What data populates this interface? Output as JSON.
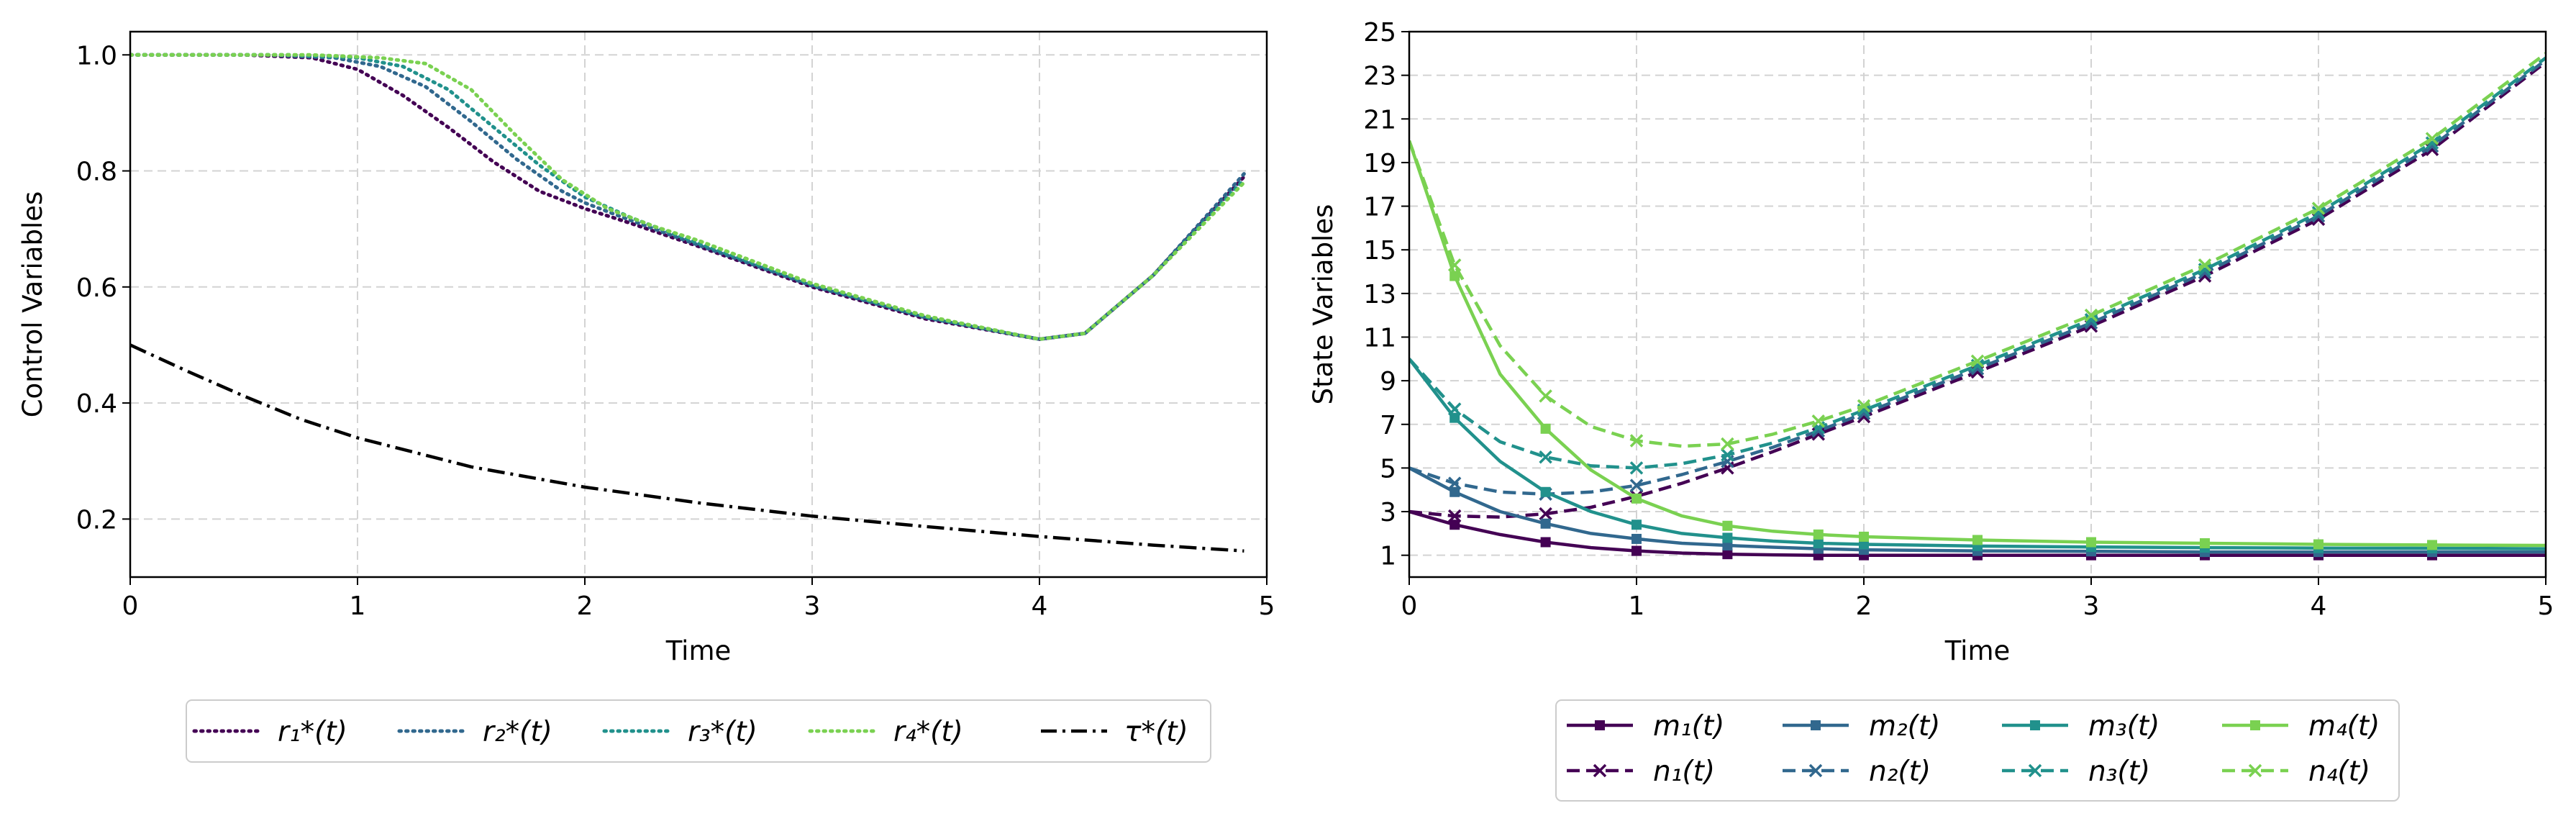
{
  "chart_data": [
    {
      "type": "line",
      "title": "",
      "xlabel": "Time",
      "ylabel": "Control Variables",
      "xlim": [
        0,
        5
      ],
      "ylim": [
        0.1,
        1.04
      ],
      "xticks": [
        0,
        1,
        2,
        3,
        4,
        5
      ],
      "yticks": [
        0.2,
        0.4,
        0.6,
        0.8,
        1.0
      ],
      "ytick_labels": [
        "0.2",
        "0.4",
        "0.6",
        "0.8",
        "1.0"
      ],
      "grid": true,
      "legend_position": "bottom",
      "series": [
        {
          "name": "r1",
          "legend": "r₁*(t)",
          "color": "#440154",
          "style": "dotted",
          "x": [
            0,
            0.5,
            0.8,
            1.0,
            1.2,
            1.4,
            1.6,
            1.8,
            2.0,
            2.2,
            2.5,
            3.0,
            3.5,
            4.0,
            4.2,
            4.5,
            4.9
          ],
          "y": [
            1.0,
            1.0,
            0.995,
            0.975,
            0.93,
            0.875,
            0.815,
            0.765,
            0.735,
            0.71,
            0.67,
            0.6,
            0.545,
            0.51,
            0.52,
            0.62,
            0.79
          ]
        },
        {
          "name": "r2",
          "legend": "r₂*(t)",
          "color": "#31688e",
          "style": "dotted",
          "x": [
            0,
            0.6,
            0.9,
            1.1,
            1.3,
            1.5,
            1.7,
            1.9,
            2.0,
            2.2,
            2.5,
            3.0,
            3.5,
            4.0,
            4.2,
            4.5,
            4.9
          ],
          "y": [
            1.0,
            1.0,
            0.995,
            0.98,
            0.945,
            0.885,
            0.82,
            0.765,
            0.745,
            0.715,
            0.672,
            0.602,
            0.547,
            0.51,
            0.52,
            0.62,
            0.795
          ]
        },
        {
          "name": "r3",
          "legend": "r₃*(t)",
          "color": "#21918c",
          "style": "dotted",
          "x": [
            0,
            0.7,
            1.0,
            1.2,
            1.4,
            1.6,
            1.8,
            2.0,
            2.2,
            2.5,
            3.0,
            3.5,
            4.0,
            4.2,
            4.5,
            4.9
          ],
          "y": [
            1.0,
            1.0,
            0.995,
            0.98,
            0.94,
            0.875,
            0.81,
            0.755,
            0.72,
            0.675,
            0.604,
            0.548,
            0.51,
            0.52,
            0.62,
            0.785
          ]
        },
        {
          "name": "r4",
          "legend": "r₄*(t)",
          "color": "#7ad151",
          "style": "dotted",
          "x": [
            0,
            0.8,
            1.1,
            1.3,
            1.5,
            1.7,
            1.9,
            2.1,
            2.3,
            2.5,
            3.0,
            3.5,
            4.0,
            4.2,
            4.5,
            4.9
          ],
          "y": [
            1.0,
            1.0,
            0.995,
            0.985,
            0.94,
            0.86,
            0.785,
            0.735,
            0.705,
            0.68,
            0.606,
            0.55,
            0.51,
            0.52,
            0.62,
            0.78
          ]
        },
        {
          "name": "tau",
          "legend": "τ*(t)",
          "color": "#000000",
          "style": "dashdot",
          "x": [
            0,
            0.25,
            0.5,
            0.75,
            1.0,
            1.5,
            2.0,
            2.5,
            3.0,
            3.5,
            4.0,
            4.5,
            4.9
          ],
          "y": [
            0.5,
            0.455,
            0.412,
            0.372,
            0.34,
            0.29,
            0.255,
            0.228,
            0.205,
            0.187,
            0.17,
            0.155,
            0.145
          ]
        }
      ]
    },
    {
      "type": "line",
      "title": "",
      "xlabel": "Time",
      "ylabel": "State Variables",
      "xlim": [
        0,
        5
      ],
      "ylim": [
        0,
        25
      ],
      "xticks": [
        0,
        1,
        2,
        3,
        4,
        5
      ],
      "yticks": [
        1,
        3,
        5,
        7,
        9,
        11,
        13,
        15,
        17,
        19,
        21,
        23,
        25
      ],
      "grid": true,
      "legend_position": "bottom",
      "series": [
        {
          "name": "m1",
          "legend": "m₁(t)",
          "color": "#440154",
          "style": "solid",
          "marker": "square",
          "x": [
            0,
            0.2,
            0.4,
            0.6,
            0.8,
            1.0,
            1.2,
            1.4,
            1.6,
            1.8,
            2.0,
            2.5,
            3.0,
            3.5,
            4.0,
            4.5,
            5.0
          ],
          "y": [
            3.0,
            2.4,
            1.95,
            1.6,
            1.35,
            1.2,
            1.1,
            1.05,
            1.02,
            1.0,
            1.0,
            1.0,
            1.0,
            1.0,
            1.0,
            1.0,
            1.0
          ]
        },
        {
          "name": "n1",
          "legend": "n₁(t)",
          "color": "#440154",
          "style": "dashed",
          "marker": "x",
          "x": [
            0,
            0.2,
            0.4,
            0.6,
            0.8,
            1.0,
            1.2,
            1.4,
            1.6,
            1.8,
            2.0,
            2.5,
            3.0,
            3.5,
            4.0,
            4.5,
            5.0
          ],
          "y": [
            3.0,
            2.8,
            2.75,
            2.9,
            3.2,
            3.7,
            4.3,
            5.0,
            5.75,
            6.55,
            7.35,
            9.4,
            11.5,
            13.8,
            16.4,
            19.6,
            23.6
          ]
        },
        {
          "name": "m2",
          "legend": "m₂(t)",
          "color": "#31688e",
          "style": "solid",
          "marker": "square",
          "x": [
            0,
            0.2,
            0.4,
            0.6,
            0.8,
            1.0,
            1.2,
            1.4,
            1.6,
            1.8,
            2.0,
            2.5,
            3.0,
            3.5,
            4.0,
            4.5,
            5.0
          ],
          "y": [
            5.0,
            3.9,
            3.0,
            2.45,
            2.0,
            1.75,
            1.55,
            1.45,
            1.37,
            1.3,
            1.25,
            1.2,
            1.18,
            1.15,
            1.15,
            1.15,
            1.15
          ]
        },
        {
          "name": "n2",
          "legend": "n₂(t)",
          "color": "#31688e",
          "style": "dashed",
          "marker": "x",
          "x": [
            0,
            0.2,
            0.4,
            0.6,
            0.8,
            1.0,
            1.2,
            1.4,
            1.6,
            1.8,
            2.0,
            2.5,
            3.0,
            3.5,
            4.0,
            4.5,
            5.0
          ],
          "y": [
            5.0,
            4.3,
            3.9,
            3.8,
            3.9,
            4.2,
            4.7,
            5.3,
            5.95,
            6.7,
            7.5,
            9.55,
            11.65,
            13.95,
            16.55,
            19.75,
            23.7
          ]
        },
        {
          "name": "m3",
          "legend": "m₃(t)",
          "color": "#21918c",
          "style": "solid",
          "marker": "square",
          "x": [
            0,
            0.2,
            0.4,
            0.6,
            0.8,
            1.0,
            1.2,
            1.4,
            1.6,
            1.8,
            2.0,
            2.5,
            3.0,
            3.5,
            4.0,
            4.5,
            5.0
          ],
          "y": [
            10.0,
            7.3,
            5.3,
            3.9,
            3.0,
            2.4,
            2.0,
            1.8,
            1.65,
            1.55,
            1.5,
            1.42,
            1.38,
            1.35,
            1.33,
            1.32,
            1.3
          ]
        },
        {
          "name": "n3",
          "legend": "n₃(t)",
          "color": "#21918c",
          "style": "dashed",
          "marker": "x",
          "x": [
            0,
            0.2,
            0.4,
            0.6,
            0.8,
            1.0,
            1.2,
            1.4,
            1.6,
            1.8,
            2.0,
            2.5,
            3.0,
            3.5,
            4.0,
            4.5,
            5.0
          ],
          "y": [
            10.0,
            7.7,
            6.2,
            5.5,
            5.1,
            5.0,
            5.2,
            5.6,
            6.15,
            6.85,
            7.65,
            9.7,
            11.8,
            14.1,
            16.7,
            19.9,
            23.8
          ]
        },
        {
          "name": "m4",
          "legend": "m₄(t)",
          "color": "#7ad151",
          "style": "solid",
          "marker": "square",
          "x": [
            0,
            0.2,
            0.4,
            0.6,
            0.8,
            1.0,
            1.2,
            1.4,
            1.6,
            1.8,
            2.0,
            2.5,
            3.0,
            3.5,
            4.0,
            4.5,
            5.0
          ],
          "y": [
            20.0,
            13.8,
            9.3,
            6.8,
            4.9,
            3.6,
            2.8,
            2.35,
            2.1,
            1.95,
            1.85,
            1.7,
            1.6,
            1.55,
            1.5,
            1.47,
            1.45
          ]
        },
        {
          "name": "n4",
          "legend": "n₄(t)",
          "color": "#7ad151",
          "style": "dashed",
          "marker": "x",
          "x": [
            0,
            0.2,
            0.4,
            0.6,
            0.8,
            1.0,
            1.2,
            1.4,
            1.6,
            1.8,
            2.0,
            2.5,
            3.0,
            3.5,
            4.0,
            4.5,
            5.0
          ],
          "y": [
            20.0,
            14.3,
            10.6,
            8.3,
            6.9,
            6.25,
            6.0,
            6.1,
            6.55,
            7.15,
            7.85,
            9.9,
            12.0,
            14.3,
            16.9,
            20.1,
            24.0
          ]
        }
      ]
    }
  ]
}
